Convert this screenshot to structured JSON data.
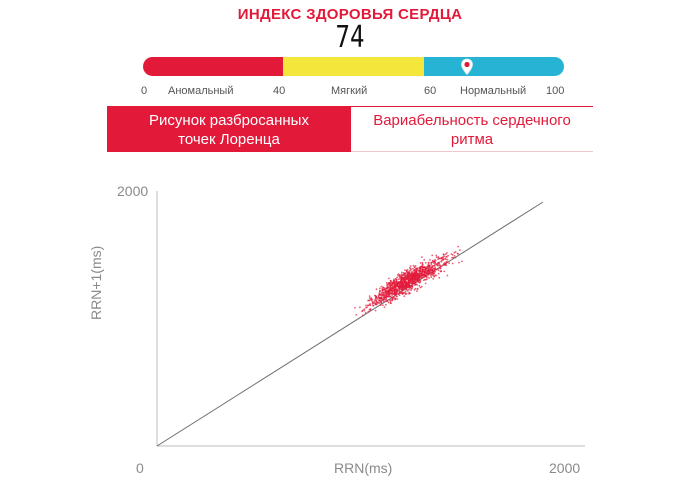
{
  "header": {
    "title": "ИНДЕКС ЗДОРОВЬЯ СЕРДЦА",
    "score": "74"
  },
  "gauge": {
    "value": 74,
    "segments": [
      {
        "label": "Аномальный",
        "color": "#e3193a"
      },
      {
        "label": "Мягкий",
        "color": "#f5e63c"
      },
      {
        "label": "Нормальный",
        "color": "#26b3d4"
      }
    ],
    "scale": {
      "min": "0",
      "t1": "40",
      "t2": "60",
      "max": "100"
    }
  },
  "tabs": [
    {
      "label": "Рисунок разбросанных точек Лоренца",
      "active": true
    },
    {
      "label": "Вариабельность сердечного ритма",
      "active": false
    }
  ],
  "chart_data": {
    "type": "scatter",
    "title": "",
    "xlabel": "RRN(ms)",
    "ylabel": "RRN+1(ms)",
    "xlim": [
      0,
      2000
    ],
    "ylim": [
      0,
      2000
    ],
    "x_ticks": [
      "0",
      "2000"
    ],
    "y_ticks": [
      "2000"
    ],
    "identity_line": true,
    "point_color": "#e3193a",
    "cluster": {
      "x_range": [
        850,
        1850
      ],
      "center": [
        1300,
        1350
      ],
      "point_count": 1200
    },
    "grid": false
  }
}
